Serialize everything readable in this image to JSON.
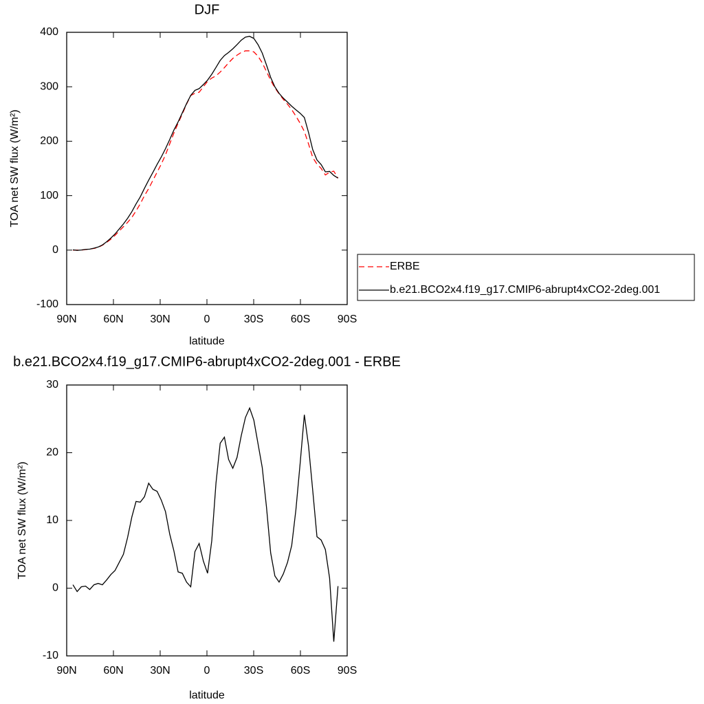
{
  "chart_data": [
    {
      "type": "line",
      "title": "DJF",
      "xlabel": "latitude",
      "ylabel": "TOA net SW flux (W/m²)",
      "x": [
        86,
        83.3,
        80.6,
        77.9,
        75.2,
        72.5,
        69.8,
        67.1,
        64.4,
        61.7,
        59,
        56.3,
        53.6,
        50.9,
        48.2,
        45.5,
        42.8,
        40.1,
        37.4,
        34.7,
        32,
        29.3,
        26.6,
        23.9,
        21.2,
        18.5,
        15.8,
        13.1,
        10.4,
        7.7,
        5,
        2.3,
        -0.4,
        -3.1,
        -5.8,
        -8.5,
        -11.2,
        -13.9,
        -16.6,
        -19.3,
        -22,
        -24.7,
        -27.4,
        -30.1,
        -32.8,
        -35.5,
        -38.2,
        -40.9,
        -43.6,
        -46.3,
        -49,
        -51.7,
        -54.4,
        -57.1,
        -59.8,
        -62.5,
        -65.2,
        -67.9,
        -70.6,
        -73.3,
        -76,
        -78.7,
        -81.4,
        -84.1
      ],
      "series": [
        {
          "name": "ERBE",
          "color": "#ff0000",
          "dashed": true,
          "values": [
            0,
            0,
            0,
            1,
            2,
            3,
            5,
            9,
            14,
            20,
            27,
            35,
            43,
            51,
            60,
            72,
            85,
            100,
            113,
            128,
            143,
            158,
            175,
            195,
            215,
            233,
            250,
            268,
            284,
            288,
            290,
            300,
            310,
            316,
            320,
            327,
            335,
            344,
            352,
            358,
            363,
            366,
            366,
            364,
            356,
            344,
            328,
            312,
            298,
            287,
            277,
            268,
            258,
            246,
            233,
            218,
            195,
            170,
            158,
            150,
            138,
            143,
            145,
            132
          ]
        },
        {
          "name": "b.e21.BCO2x4.f19_g17.CMIP6-abrupt4xCO2-2deg.001",
          "color": "#000000",
          "dashed": false,
          "values": [
            0.5,
            -0.5,
            0.2,
            1.3,
            1.8,
            3.5,
            5.7,
            9.5,
            15.2,
            22,
            29.6,
            38.8,
            48,
            58.5,
            70.5,
            84.8,
            97.7,
            113.5,
            128.5,
            142.6,
            157.3,
            171,
            186.3,
            203,
            220.5,
            235.4,
            252.2,
            268.9,
            284.2,
            293.4,
            296.6,
            304,
            312.2,
            323,
            335.5,
            348.4,
            357.3,
            363,
            369.7,
            377.3,
            385.5,
            391.2,
            392.6,
            388.8,
            377.3,
            361.8,
            340,
            317.2,
            299.8,
            287.9,
            279.1,
            271.8,
            264.3,
            257.6,
            251.4,
            243.6,
            216,
            184.4,
            165.6,
            157.1,
            143.7,
            144.5,
            137.1,
            132.3
          ]
        }
      ],
      "xlim": [
        90,
        -90
      ],
      "xticks": [
        {
          "value": 90,
          "label": "90N"
        },
        {
          "value": 60,
          "label": "60N"
        },
        {
          "value": 30,
          "label": "30N"
        },
        0,
        {
          "value": -30,
          "label": "30S"
        },
        {
          "value": -60,
          "label": "60S"
        },
        {
          "value": -90,
          "label": "90S"
        }
      ],
      "ylim": [
        -100,
        400
      ],
      "yticks": [
        -100,
        0,
        100,
        200,
        300,
        400
      ],
      "legend": "right"
    },
    {
      "type": "line",
      "title": "b.e21.BCO2x4.f19_g17.CMIP6-abrupt4xCO2-2deg.001 - ERBE",
      "xlabel": "latitude",
      "ylabel": "TOA net SW flux (W/m²)",
      "x": [
        86,
        83.3,
        80.6,
        77.9,
        75.2,
        72.5,
        69.8,
        67.1,
        64.4,
        61.7,
        59,
        56.3,
        53.6,
        50.9,
        48.2,
        45.5,
        42.8,
        40.1,
        37.4,
        34.7,
        32,
        29.3,
        26.6,
        23.9,
        21.2,
        18.5,
        15.8,
        13.1,
        10.4,
        7.7,
        5,
        2.3,
        -0.4,
        -3.1,
        -5.8,
        -8.5,
        -11.2,
        -13.9,
        -16.6,
        -19.3,
        -22,
        -24.7,
        -27.4,
        -30.1,
        -32.8,
        -35.5,
        -38.2,
        -40.9,
        -43.6,
        -46.3,
        -49,
        -51.7,
        -54.4,
        -57.1,
        -59.8,
        -62.5,
        -65.2,
        -67.9,
        -70.6,
        -73.3,
        -76,
        -78.7,
        -81.4,
        -84.1
      ],
      "series": [
        {
          "color": "#000000",
          "dashed": false,
          "values": [
            0.5,
            -0.5,
            0.2,
            0.3,
            -0.2,
            0.5,
            0.7,
            0.5,
            1.2,
            2.0,
            2.6,
            3.8,
            5.0,
            7.5,
            10.5,
            12.8,
            12.7,
            13.5,
            15.5,
            14.6,
            14.3,
            13.0,
            11.3,
            8.0,
            5.5,
            2.4,
            2.2,
            0.9,
            0.2,
            5.4,
            6.6,
            4.0,
            2.2,
            7.0,
            15.5,
            21.4,
            22.3,
            19.0,
            17.7,
            19.3,
            22.5,
            25.2,
            26.6,
            24.8,
            21.3,
            17.8,
            12.0,
            5.2,
            1.8,
            0.9,
            2.1,
            3.8,
            6.3,
            11.6,
            18.4,
            25.6,
            21.0,
            14.4,
            7.6,
            7.1,
            5.7,
            1.5,
            -7.9,
            0.3
          ]
        }
      ],
      "xlim": [
        90,
        -90
      ],
      "xticks": [
        {
          "value": 90,
          "label": "90N"
        },
        {
          "value": 60,
          "label": "60N"
        },
        {
          "value": 30,
          "label": "30N"
        },
        0,
        {
          "value": -30,
          "label": "30S"
        },
        {
          "value": -60,
          "label": "60S"
        },
        {
          "value": -90,
          "label": "90S"
        }
      ],
      "ylim": [
        -10,
        30
      ],
      "yticks": [
        -10,
        0,
        10,
        20,
        30
      ]
    }
  ]
}
